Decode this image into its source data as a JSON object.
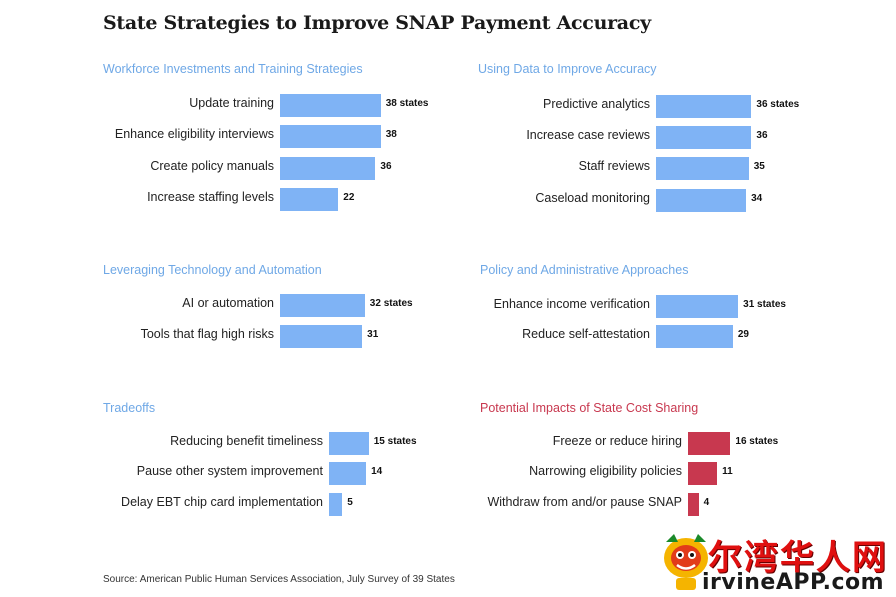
{
  "title": "State Strategies to Improve SNAP Payment Accuracy",
  "source": "Source: American Public Human Services Association, July Survey of 39 States",
  "watermark": {
    "top": "尔湾华人网",
    "bottom": "irvineAPP.com"
  },
  "colors": {
    "blue": "#7fb3f5",
    "red": "#c8384f",
    "panel_title_blue": "#6fa8e6"
  },
  "chart_data": [
    {
      "type": "bar",
      "title": "Workforce Investments and Training Strategies",
      "color": "blue",
      "categories": [
        "Update training",
        "Enhance eligibility interviews",
        "Create policy manuals",
        "Increase staffing levels"
      ],
      "values": [
        38,
        38,
        36,
        22
      ],
      "labels": [
        "38 states",
        "38",
        "36",
        "22"
      ]
    },
    {
      "type": "bar",
      "title": "Using Data to Improve Accuracy",
      "color": "blue",
      "categories": [
        "Predictive analytics",
        "Increase case reviews",
        "Staff reviews",
        "Caseload monitoring"
      ],
      "values": [
        36,
        36,
        35,
        34
      ],
      "labels": [
        "36 states",
        "36",
        "35",
        "34"
      ]
    },
    {
      "type": "bar",
      "title": "Leveraging Technology and Automation",
      "color": "blue",
      "categories": [
        "AI or automation",
        "Tools that flag high risks"
      ],
      "values": [
        32,
        31
      ],
      "labels": [
        "32 states",
        "31"
      ]
    },
    {
      "type": "bar",
      "title": "Policy and Administrative Approaches",
      "color": "blue",
      "categories": [
        "Enhance income verification",
        "Reduce self-attestation"
      ],
      "values": [
        31,
        29
      ],
      "labels": [
        "31 states",
        "29"
      ]
    },
    {
      "type": "bar",
      "title": "Tradeoffs",
      "color": "blue",
      "categories": [
        "Reducing benefit timeliness",
        "Pause other system improvement",
        "Delay EBT chip card implementation"
      ],
      "values": [
        15,
        14,
        5
      ],
      "labels": [
        "15 states",
        "14",
        "5"
      ]
    },
    {
      "type": "bar",
      "title": "Potential Impacts of State Cost Sharing",
      "color": "red",
      "categories": [
        "Freeze or reduce hiring",
        "Narrowing eligibility policies",
        "Withdraw from and/or pause SNAP"
      ],
      "values": [
        16,
        11,
        4
      ],
      "labels": [
        "16 states",
        "11",
        "4"
      ]
    }
  ]
}
